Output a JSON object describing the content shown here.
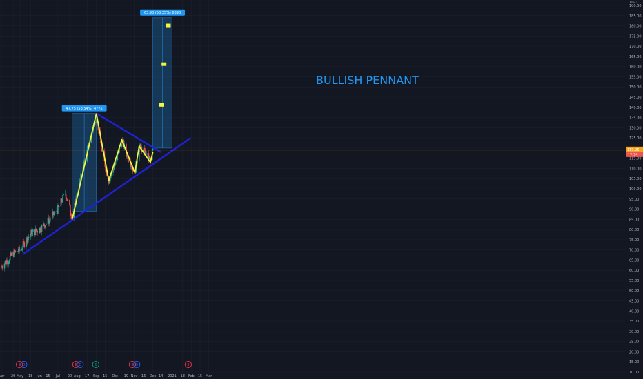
{
  "chart_data": {
    "type": "candlestick",
    "title": "BULLISH PENNANT",
    "currency": "USD",
    "y_axis": {
      "min": 10,
      "max": 190,
      "step": 5,
      "ticks": [
        "190.00",
        "185.00",
        "180.00",
        "175.00",
        "170.00",
        "165.00",
        "160.00",
        "155.00",
        "150.00",
        "145.00",
        "140.00",
        "135.00",
        "130.00",
        "125.00",
        "120.00",
        "115.00",
        "110.00",
        "105.00",
        "100.00",
        "95.00",
        "90.00",
        "85.00",
        "80.00",
        "75.00",
        "70.00",
        "65.00",
        "60.00",
        "55.00",
        "50.00",
        "45.00",
        "40.00",
        "35.00",
        "30.00",
        "25.00",
        "20.00",
        "15.00",
        "10.00"
      ]
    },
    "x_axis": {
      "ticks": [
        {
          "label": "Apr",
          "date": "2020-04-01"
        },
        {
          "label": "20",
          "date": "2020-04-20"
        },
        {
          "label": "May",
          "date": "2020-05-01"
        },
        {
          "label": "18",
          "date": "2020-05-18"
        },
        {
          "label": "Jun",
          "date": "2020-06-01"
        },
        {
          "label": "15",
          "date": "2020-06-15"
        },
        {
          "label": "Jul",
          "date": "2020-07-01"
        },
        {
          "label": "20",
          "date": "2020-07-20"
        },
        {
          "label": "Aug",
          "date": "2020-08-01"
        },
        {
          "label": "17",
          "date": "2020-08-17"
        },
        {
          "label": "Sep",
          "date": "2020-09-01"
        },
        {
          "label": "15",
          "date": "2020-09-15"
        },
        {
          "label": "Oct",
          "date": "2020-10-01"
        },
        {
          "label": "19",
          "date": "2020-10-19"
        },
        {
          "label": "Nov",
          "date": "2020-11-01"
        },
        {
          "label": "16",
          "date": "2020-11-16"
        },
        {
          "label": "Dec",
          "date": "2020-12-01"
        },
        {
          "label": "14",
          "date": "2020-12-14"
        },
        {
          "label": "2021",
          "date": "2021-01-01"
        },
        {
          "label": "18",
          "date": "2021-01-18"
        },
        {
          "label": "Feb",
          "date": "2021-02-01"
        },
        {
          "label": "15",
          "date": "2021-02-15"
        },
        {
          "label": "Mar",
          "date": "2021-03-01"
        }
      ]
    },
    "price_path": [
      [
        "2020-04-01",
        62
      ],
      [
        "2020-04-20",
        68
      ],
      [
        "2020-05-01",
        70
      ],
      [
        "2020-05-18",
        78
      ],
      [
        "2020-06-01",
        80
      ],
      [
        "2020-06-15",
        84
      ],
      [
        "2020-07-01",
        90
      ],
      [
        "2020-07-13",
        98
      ],
      [
        "2020-07-24",
        86
      ],
      [
        "2020-08-10",
        110
      ],
      [
        "2020-08-25",
        128
      ],
      [
        "2020-09-01",
        136
      ],
      [
        "2020-09-10",
        118
      ],
      [
        "2020-09-21",
        104
      ],
      [
        "2020-10-01",
        112
      ],
      [
        "2020-10-12",
        124
      ],
      [
        "2020-10-20",
        117
      ],
      [
        "2020-11-02",
        108
      ],
      [
        "2020-11-09",
        121
      ],
      [
        "2020-11-20",
        117
      ],
      [
        "2020-11-27",
        114
      ],
      [
        "2020-12-01",
        119
      ]
    ],
    "zigzag": [
      [
        "2020-07-24",
        85
      ],
      [
        "2020-09-01",
        137
      ],
      [
        "2020-09-21",
        104
      ],
      [
        "2020-10-12",
        124
      ],
      [
        "2020-11-02",
        108
      ],
      [
        "2020-11-09",
        121
      ],
      [
        "2020-11-27",
        113
      ],
      [
        "2020-12-01",
        118
      ]
    ],
    "support_line": [
      [
        "2020-05-06",
        68
      ],
      [
        "2021-01-31",
        125
      ]
    ],
    "resistance_line": [
      [
        "2020-09-01",
        137
      ],
      [
        "2020-12-14",
        118
      ]
    ],
    "measure_boxes": [
      {
        "label": "47.75 (53.54%) 4775",
        "from": "2020-07-24",
        "to": "2020-09-01",
        "low": 89,
        "high": 137
      },
      {
        "label": "63.90 (53.35%) 6390",
        "from": "2020-12-01",
        "to": "2021-01-01",
        "low": 120,
        "high": 184
      }
    ],
    "flags": [
      {
        "date": "2020-12-11",
        "value": 141
      },
      {
        "date": "2020-12-15",
        "value": 161
      },
      {
        "date": "2020-12-22",
        "value": 180
      }
    ],
    "current_price": {
      "value": 119,
      "label": "119.25",
      "countdown": "17:29"
    },
    "event_markers": [
      {
        "label": "E",
        "date": "2020-04-30",
        "color": "#f23645"
      },
      {
        "label": "D",
        "date": "2020-05-07",
        "color": "#2962ff"
      },
      {
        "label": "E",
        "date": "2020-07-30",
        "color": "#f23645"
      },
      {
        "label": "D",
        "date": "2020-08-06",
        "color": "#2962ff"
      },
      {
        "label": "S",
        "date": "2020-08-31",
        "color": "#089981"
      },
      {
        "label": "E",
        "date": "2020-10-29",
        "color": "#f23645"
      },
      {
        "label": "D",
        "date": "2020-11-05",
        "color": "#2962ff"
      },
      {
        "label": "E",
        "date": "2021-01-27",
        "color": "#f23645"
      }
    ],
    "colors": {
      "background": "#131722",
      "up": "#26a69a",
      "down": "#ef5350",
      "trendline": "#1e22d6",
      "zigzag": "#f5f53a",
      "box": "#2196f3",
      "price_line": "#ff9800",
      "text": "#b2b5be"
    }
  }
}
